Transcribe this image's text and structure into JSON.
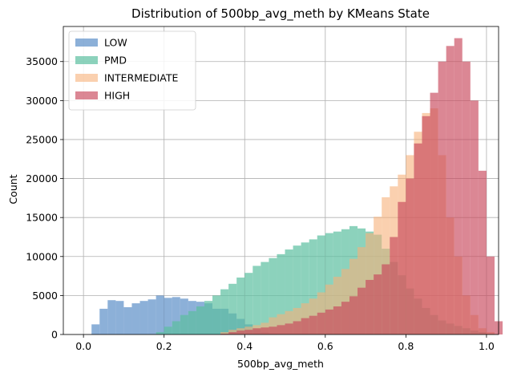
{
  "chart_data": {
    "type": "bar",
    "title": "Distribution of 500bp_avg_meth by KMeans State",
    "xlabel": "500bp_avg_meth",
    "ylabel": "Count",
    "xlim": [
      -0.05,
      1.03
    ],
    "ylim": [
      0,
      39500
    ],
    "xticks": [
      0.0,
      0.2,
      0.4,
      0.6,
      0.8,
      1.0
    ],
    "xtick_labels": [
      "0.0",
      "0.2",
      "0.4",
      "0.6",
      "0.8",
      "1.0"
    ],
    "yticks": [
      0,
      5000,
      10000,
      15000,
      20000,
      25000,
      30000,
      35000
    ],
    "ytick_labels": [
      "0",
      "5000",
      "10000",
      "15000",
      "20000",
      "25000",
      "30000",
      "35000"
    ],
    "grid": true,
    "legend_position": "upper-left",
    "bin_width": 0.02,
    "series": [
      {
        "name": "LOW",
        "color": "#5b8fc8",
        "opacity": 0.7,
        "bins_start": 0.02,
        "values": [
          1300,
          3300,
          4400,
          4300,
          3500,
          4000,
          4300,
          4500,
          5000,
          4700,
          4800,
          4600,
          4300,
          4200,
          4000,
          3300,
          3300,
          2700,
          2000,
          1300,
          700,
          300,
          100
        ]
      },
      {
        "name": "PMD",
        "color": "#5bbf9f",
        "opacity": 0.7,
        "bins_start": 0.18,
        "values": [
          300,
          1000,
          1700,
          2500,
          3000,
          3600,
          4300,
          5000,
          5800,
          6500,
          7300,
          7900,
          8800,
          9300,
          9800,
          10300,
          10900,
          11400,
          11800,
          12200,
          12700,
          13000,
          13200,
          13500,
          13900,
          13600,
          13200,
          12800,
          11000,
          9300,
          7600,
          5900,
          4600,
          3400,
          2500,
          1800,
          1400,
          1100,
          800,
          500,
          300,
          100
        ]
      },
      {
        "name": "INTERMEDIATE",
        "color": "#f6b07a",
        "opacity": 0.6,
        "bins_start": 0.34,
        "values": [
          300,
          600,
          800,
          1000,
          1200,
          1500,
          2200,
          2600,
          3000,
          3400,
          4000,
          4600,
          5400,
          6400,
          7400,
          8400,
          9700,
          11200,
          13000,
          15100,
          17600,
          19000,
          20500,
          23000,
          26000,
          28400,
          29000,
          23000,
          15000,
          10000,
          5000,
          2500,
          800,
          300
        ]
      },
      {
        "name": "HIGH",
        "color": "#c8475a",
        "opacity": 0.65,
        "bins_start": 0.34,
        "values": [
          100,
          300,
          500,
          600,
          800,
          900,
          1000,
          1200,
          1400,
          1700,
          2100,
          2400,
          2800,
          3200,
          3600,
          4200,
          4900,
          6000,
          7000,
          7700,
          9000,
          12500,
          17000,
          20000,
          24500,
          28000,
          31000,
          35000,
          37000,
          38000,
          35000,
          30000,
          21000,
          10000,
          1700
        ]
      }
    ]
  }
}
